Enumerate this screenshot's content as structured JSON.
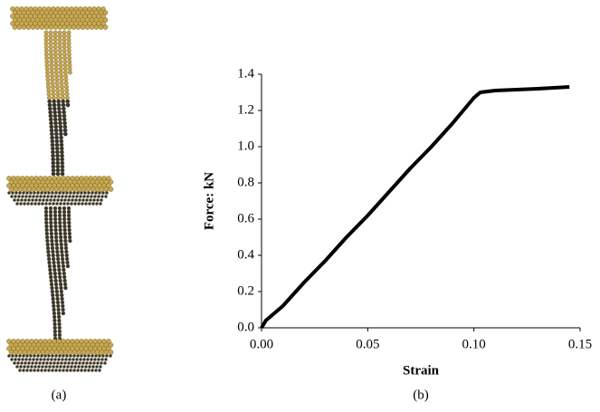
{
  "panel_a": {
    "label": "(a)"
  },
  "chart_data": {
    "type": "line",
    "panel_label": "(b)",
    "x_label": "Strain",
    "y_label": "Force: kN",
    "x": [
      0,
      0.002,
      0.01,
      0.02,
      0.03,
      0.04,
      0.05,
      0.06,
      0.07,
      0.08,
      0.09,
      0.1,
      0.103,
      0.11,
      0.13,
      0.145
    ],
    "values": [
      0,
      0.04,
      0.12,
      0.25,
      0.37,
      0.5,
      0.62,
      0.75,
      0.88,
      1.0,
      1.13,
      1.27,
      1.3,
      1.31,
      1.32,
      1.33
    ],
    "color": "#000000",
    "xlim": [
      0,
      0.15
    ],
    "ylim": [
      0,
      1.4
    ],
    "xticks": [
      {
        "value": 0,
        "label": "0.00"
      },
      0.05,
      {
        "value": 0.1,
        "label": "0.10"
      },
      0.15
    ],
    "yticks": [
      {
        "value": 0,
        "label": "0.0"
      },
      0.2,
      0.4,
      0.6,
      0.8,
      {
        "value": 1,
        "label": "1.0"
      },
      1.2,
      1.4
    ],
    "grid": false
  }
}
